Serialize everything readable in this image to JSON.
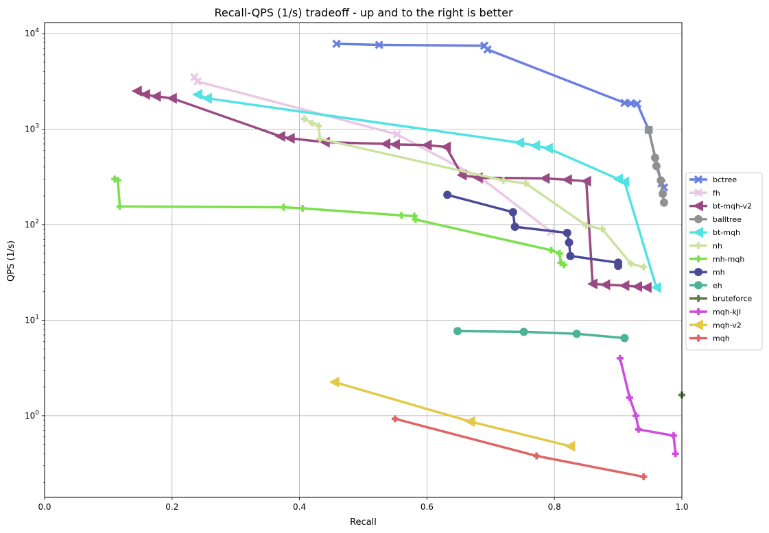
{
  "chart_data": {
    "type": "line",
    "title": "Recall-QPS (1/s) tradeoff - up and to the right is better",
    "xlabel": "Recall",
    "ylabel": "QPS (1/s)",
    "xlim": [
      0.0,
      1.0
    ],
    "ylim": [
      0.14,
      13000
    ],
    "yscale": "log",
    "grid": true,
    "legend_position": "right",
    "x_ticks": [
      "0.0",
      "0.2",
      "0.4",
      "0.6",
      "0.8",
      "1.0"
    ],
    "y_ticks": [
      {
        "base": "10",
        "exp": "0"
      },
      {
        "base": "10",
        "exp": "1"
      },
      {
        "base": "10",
        "exp": "2"
      },
      {
        "base": "10",
        "exp": "3"
      },
      {
        "base": "10",
        "exp": "4"
      }
    ],
    "series": [
      {
        "name": "bctree",
        "color": "#6a80e0",
        "marker": "x",
        "points": [
          [
            0.458,
            7800
          ],
          [
            0.525,
            7600
          ],
          [
            0.69,
            7450
          ],
          [
            0.695,
            6800
          ],
          [
            0.91,
            1880
          ],
          [
            0.92,
            1860
          ],
          [
            0.93,
            1840
          ],
          [
            0.948,
            980
          ],
          [
            0.968,
            270
          ],
          [
            0.972,
            245
          ]
        ]
      },
      {
        "name": "fh",
        "color": "#e8c8e6",
        "marker": "x",
        "points": [
          [
            0.235,
            3500
          ],
          [
            0.24,
            3150
          ],
          [
            0.553,
            880
          ],
          [
            0.69,
            290
          ],
          [
            0.795,
            84
          ]
        ]
      },
      {
        "name": "bt-mqh-v2",
        "color": "#9a4a82",
        "marker": "<",
        "points": [
          [
            0.145,
            2500
          ],
          [
            0.158,
            2300
          ],
          [
            0.175,
            2200
          ],
          [
            0.2,
            2100
          ],
          [
            0.37,
            840
          ],
          [
            0.385,
            800
          ],
          [
            0.44,
            730
          ],
          [
            0.535,
            700
          ],
          [
            0.55,
            690
          ],
          [
            0.6,
            680
          ],
          [
            0.63,
            650
          ],
          [
            0.655,
            330
          ],
          [
            0.68,
            310
          ],
          [
            0.785,
            305
          ],
          [
            0.82,
            295
          ],
          [
            0.85,
            285
          ],
          [
            0.86,
            24
          ],
          [
            0.88,
            23.5
          ],
          [
            0.91,
            23
          ],
          [
            0.93,
            22.5
          ],
          [
            0.945,
            22
          ]
        ]
      },
      {
        "name": "balltree",
        "color": "#909090",
        "marker": "o",
        "points": [
          [
            0.948,
            980
          ],
          [
            0.958,
            500
          ],
          [
            0.96,
            410
          ],
          [
            0.967,
            290
          ],
          [
            0.97,
            210
          ],
          [
            0.972,
            170
          ]
        ]
      },
      {
        "name": "bt-mqh",
        "color": "#52e2e4",
        "marker": "<",
        "points": [
          [
            0.24,
            2300
          ],
          [
            0.255,
            2100
          ],
          [
            0.745,
            720
          ],
          [
            0.77,
            670
          ],
          [
            0.79,
            630
          ],
          [
            0.9,
            300
          ],
          [
            0.91,
            280
          ],
          [
            0.96,
            22
          ]
        ]
      },
      {
        "name": "nh",
        "color": "#cce2a0",
        "marker": "P",
        "points": [
          [
            0.408,
            1280
          ],
          [
            0.42,
            1150
          ],
          [
            0.43,
            1080
          ],
          [
            0.432,
            790
          ],
          [
            0.72,
            290
          ],
          [
            0.755,
            270
          ],
          [
            0.85,
            98
          ],
          [
            0.875,
            90
          ],
          [
            0.92,
            39
          ],
          [
            0.94,
            36
          ]
        ]
      },
      {
        "name": "mh-mqh",
        "color": "#7be04c",
        "marker": "P",
        "points": [
          [
            0.11,
            300
          ],
          [
            0.115,
            292
          ],
          [
            0.118,
            155
          ],
          [
            0.375,
            152
          ],
          [
            0.405,
            148
          ],
          [
            0.56,
            125
          ],
          [
            0.58,
            123
          ],
          [
            0.582,
            113
          ],
          [
            0.795,
            54
          ],
          [
            0.808,
            50
          ],
          [
            0.81,
            40
          ],
          [
            0.815,
            38
          ]
        ]
      },
      {
        "name": "mh",
        "color": "#4a4a96",
        "marker": "o",
        "points": [
          [
            0.632,
            205
          ],
          [
            0.735,
            135
          ],
          [
            0.738,
            95
          ],
          [
            0.82,
            82
          ],
          [
            0.823,
            65
          ],
          [
            0.825,
            47
          ],
          [
            0.9,
            40
          ],
          [
            0.9,
            37
          ]
        ]
      },
      {
        "name": "eh",
        "color": "#4cb496",
        "marker": "o",
        "points": [
          [
            0.648,
            7.7
          ],
          [
            0.752,
            7.55
          ],
          [
            0.835,
            7.2
          ],
          [
            0.91,
            6.5
          ]
        ]
      },
      {
        "name": "bruteforce",
        "color": "#5e7a48",
        "marker": "P",
        "points": [
          [
            1.0,
            1.65
          ]
        ]
      },
      {
        "name": "mqh-kjl",
        "color": "#cc4cdc",
        "marker": "P",
        "points": [
          [
            0.903,
            4.0
          ],
          [
            0.918,
            1.55
          ],
          [
            0.928,
            1.0
          ],
          [
            0.932,
            0.72
          ],
          [
            0.987,
            0.62
          ],
          [
            0.99,
            0.4
          ]
        ]
      },
      {
        "name": "mqh-v2",
        "color": "#e4c848",
        "marker": "<",
        "points": [
          [
            0.455,
            2.25
          ],
          [
            0.668,
            0.87
          ],
          [
            0.825,
            0.48
          ]
        ]
      },
      {
        "name": "mqh",
        "color": "#e06464",
        "marker": "P",
        "points": [
          [
            0.55,
            0.93
          ],
          [
            0.772,
            0.38
          ],
          [
            0.94,
            0.23
          ]
        ]
      }
    ]
  }
}
